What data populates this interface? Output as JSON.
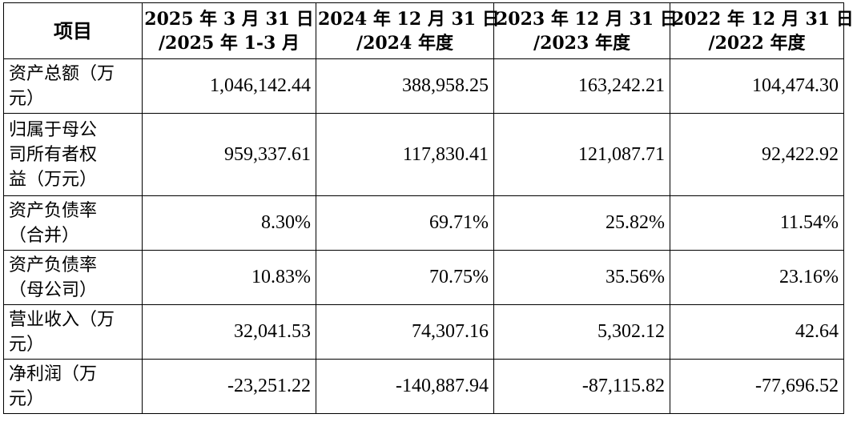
{
  "table": {
    "header": {
      "item": "项目",
      "columns": [
        {
          "line1": "2025 年 3 月 31 日",
          "line2": "/2025 年 1-3 月"
        },
        {
          "line1": "2024 年 12 月 31 日",
          "line2": "/2024 年度"
        },
        {
          "line1": "2023 年 12 月 31 日",
          "line2": "/2023 年度"
        },
        {
          "line1": "2022 年 12 月 31 日",
          "line2": "/2022 年度"
        }
      ]
    },
    "rows": [
      {
        "label": [
          "资产总额（万",
          "元）"
        ],
        "values": [
          "1,046,142.44",
          "388,958.25",
          "163,242.21",
          "104,474.30"
        ]
      },
      {
        "label": [
          "归属于母公",
          "司所有者权",
          "益（万元）"
        ],
        "values": [
          "959,337.61",
          "117,830.41",
          "121,087.71",
          "92,422.92"
        ]
      },
      {
        "label": [
          "资产负债率",
          "（合并）"
        ],
        "values": [
          "8.30%",
          "69.71%",
          "25.82%",
          "11.54%"
        ]
      },
      {
        "label": [
          "资产负债率",
          "（母公司）"
        ],
        "values": [
          "10.83%",
          "70.75%",
          "35.56%",
          "23.16%"
        ]
      },
      {
        "label": [
          "营业收入（万",
          "元）"
        ],
        "values": [
          "32,041.53",
          "74,307.16",
          "5,302.12",
          "42.64"
        ]
      },
      {
        "label": [
          "净利润（万",
          "元）"
        ],
        "values": [
          "-23,251.22",
          "-140,887.94",
          "-87,115.82",
          "-77,696.52"
        ]
      }
    ]
  }
}
